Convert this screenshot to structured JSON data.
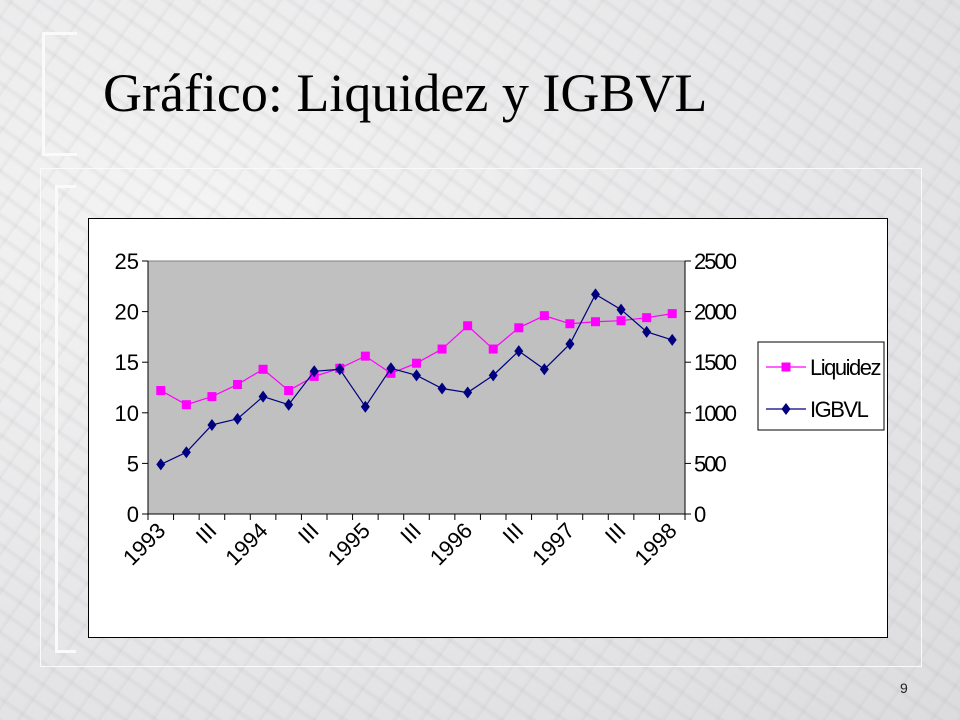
{
  "slide": {
    "title": "Gráfico: Liquidez y IGBVL",
    "page_number": "9"
  },
  "chart_data": {
    "type": "line",
    "title": "",
    "xlabel": "",
    "ylabel": "",
    "x_tick_labels": [
      "1993",
      "III",
      "1994",
      "III",
      "1995",
      "III",
      "1996",
      "III",
      "1997",
      "III",
      "1998"
    ],
    "y_left": {
      "range": [
        0,
        25
      ],
      "ticks": [
        "0",
        "5",
        "10",
        "15",
        "20",
        "25"
      ]
    },
    "y_right": {
      "range": [
        0,
        2500
      ],
      "ticks": [
        "0",
        "500",
        "1000",
        "1500",
        "2000",
        "2500"
      ]
    },
    "plot_background": "#c0c0c0",
    "grid": false,
    "legend": {
      "position": "right"
    },
    "series": [
      {
        "name": "Liquidez",
        "axis": "left",
        "color": "#ff00ff",
        "marker": "square",
        "values": [
          12.2,
          10.8,
          11.6,
          12.8,
          14.3,
          12.2,
          13.6,
          14.4,
          15.6,
          13.9,
          14.9,
          16.3,
          18.6,
          16.3,
          18.4,
          19.6,
          18.8,
          19.0,
          19.1,
          19.4,
          19.8
        ]
      },
      {
        "name": "IGBVL",
        "axis": "right",
        "color": "#000080",
        "marker": "diamond",
        "values": [
          490,
          610,
          880,
          940,
          1160,
          1080,
          1410,
          1430,
          1060,
          1440,
          1370,
          1240,
          1200,
          1370,
          1610,
          1430,
          1680,
          2170,
          2020,
          1800,
          1720
        ]
      }
    ]
  }
}
